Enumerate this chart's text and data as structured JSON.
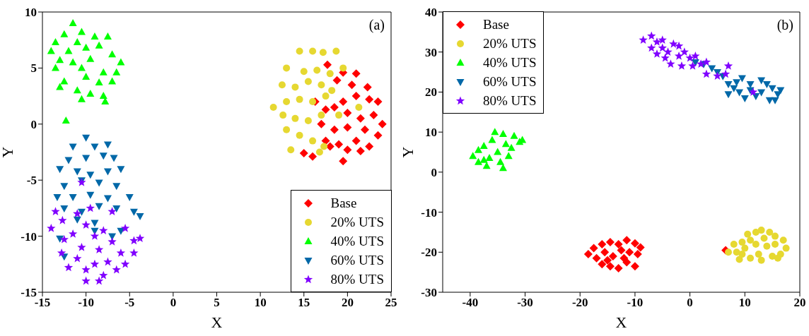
{
  "chart_data": [
    {
      "type": "scatter",
      "xlabel": "X",
      "ylabel": "Y",
      "annotations": [
        "(a)"
      ],
      "xlim": [
        -15,
        25
      ],
      "ylim": [
        -15,
        10
      ],
      "xticks": [
        -15,
        -10,
        -5,
        0,
        5,
        10,
        15,
        20,
        25
      ],
      "yticks": [
        -15,
        -10,
        -5,
        0,
        5,
        10
      ],
      "legend": "bottom right",
      "series": [
        {
          "name": "Base",
          "color": "#ff0000",
          "marker": "diamond",
          "x": [
            17.7,
            19.5,
            21,
            22.3,
            18.8,
            20.5,
            23.5,
            22.5,
            19.5,
            21,
            18.5,
            20,
            21.5,
            23,
            24,
            17,
            18.5,
            20,
            22,
            23.5,
            17.5,
            19,
            21,
            22.5,
            20,
            19.5,
            15,
            16,
            18,
            21.5,
            17.5,
            16.3
          ],
          "values": [
            5.3,
            4.6,
            4.5,
            3.3,
            3.9,
            3.5,
            2,
            2.2,
            2,
            2.5,
            1.5,
            1,
            0.5,
            0.8,
            0,
            0,
            -0.5,
            -0.3,
            -0.5,
            -1,
            -1.5,
            -1.8,
            -1.5,
            -2,
            -2.3,
            -3.3,
            -2.6,
            -2.9,
            -2,
            -2.4,
            1.3,
            2
          ]
        },
        {
          "name": "20% UTS",
          "color": "#e6d831",
          "marker": "circle",
          "x": [
            14.5,
            16,
            17.2,
            18.7,
            19.5,
            13,
            15,
            16.5,
            18,
            12.5,
            14,
            15.5,
            17,
            18.2,
            11.5,
            13,
            14.5,
            16,
            17.5,
            12.6,
            14,
            15.5,
            17,
            13,
            14.5,
            16,
            17.3,
            13.5,
            16.8,
            21.3,
            19
          ],
          "values": [
            6.5,
            6.5,
            6.4,
            6.5,
            5,
            5,
            4.7,
            4.8,
            4.5,
            3.5,
            3.3,
            3.8,
            3.5,
            3,
            1.5,
            2,
            2.2,
            2,
            2.5,
            0.8,
            0.5,
            0.3,
            0.8,
            -0.5,
            -1,
            -1.5,
            -2,
            -2.3,
            -2.5,
            1.5,
            0.8
          ]
        },
        {
          "name": "40% UTS",
          "color": "#00ff00",
          "marker": "triangle",
          "x": [
            -11.5,
            -12.5,
            -10.5,
            -9,
            -7.5,
            -13.5,
            -11,
            -8.5,
            -14,
            -12,
            -10,
            -7,
            -13,
            -11.5,
            -9.5,
            -6,
            -13.5,
            -10.5,
            -8,
            -6.5,
            -12.5,
            -10,
            -8.5,
            -7,
            -13,
            -11,
            -9.5,
            -8,
            -10.5,
            -7.8,
            -12.3
          ],
          "values": [
            9,
            8,
            8.2,
            7.8,
            7.8,
            7.3,
            7.3,
            7,
            6.5,
            6.5,
            6.8,
            6.2,
            5.7,
            5.5,
            5.8,
            5.5,
            5,
            5,
            4.6,
            4.6,
            3.8,
            4.2,
            3.7,
            3.8,
            3.3,
            3,
            2.7,
            2.5,
            2.2,
            2,
            0.3
          ]
        },
        {
          "name": "60% UTS",
          "color": "#0068a8",
          "marker": "triangle-down",
          "x": [
            -10,
            -11.5,
            -9,
            -7.5,
            -12,
            -10,
            -8,
            -6.8,
            -13,
            -11,
            -9.5,
            -7.5,
            -6,
            -12.5,
            -10.5,
            -8.5,
            -6.5,
            -13.3,
            -11.5,
            -9.5,
            -7.5,
            -5,
            -12.5,
            -10.5,
            -8.5,
            -6.5,
            -4.5,
            -11,
            -9,
            -3.8,
            -13,
            -9,
            -6,
            -12.5,
            -7
          ],
          "values": [
            -1.2,
            -2,
            -2,
            -1.8,
            -3.2,
            -3,
            -2.8,
            -3,
            -4,
            -4.2,
            -4.5,
            -4.2,
            -4,
            -5.5,
            -5,
            -5.2,
            -5.5,
            -6.5,
            -6.5,
            -6.3,
            -6.6,
            -6.5,
            -7.5,
            -7.8,
            -7.3,
            -7.5,
            -7.8,
            -8.5,
            -8.8,
            -8.2,
            -10.2,
            -9.5,
            -9.5,
            -11.8,
            -10
          ]
        },
        {
          "name": "80% UTS",
          "color": "#8000ff",
          "marker": "star",
          "x": [
            -10.5,
            -13.5,
            -11,
            -9.5,
            -7,
            -12.7,
            -10,
            -8,
            -5.5,
            -14,
            -11.5,
            -9,
            -7,
            -4.5,
            -3.8,
            -12.5,
            -10.5,
            -8.5,
            -6,
            -12.8,
            -11,
            -9,
            -7.5,
            -12,
            -10,
            -8,
            -6.5,
            -10,
            -8.5,
            -4.5,
            -5.5
          ],
          "values": [
            -5.2,
            -7.8,
            -8,
            -7.5,
            -7.8,
            -8.6,
            -9,
            -9.5,
            -9.3,
            -9.3,
            -9.8,
            -10,
            -10.5,
            -10.4,
            -10.2,
            -10.3,
            -11,
            -11.2,
            -11.5,
            -11.5,
            -12,
            -12.5,
            -12.3,
            -12.8,
            -13,
            -13.5,
            -13,
            -14,
            -14,
            -11.5,
            -12.5
          ]
        }
      ]
    },
    {
      "type": "scatter",
      "xlabel": "X",
      "ylabel": "Y",
      "annotations": [
        "(b)"
      ],
      "xlim": [
        -45,
        20
      ],
      "ylim": [
        -30,
        40
      ],
      "xticks": [
        -40,
        -30,
        -20,
        -10,
        0,
        10,
        20
      ],
      "yticks": [
        -30,
        -20,
        -10,
        0,
        10,
        20,
        30,
        40
      ],
      "legend": "top left",
      "series": [
        {
          "name": "Base",
          "color": "#ff0000",
          "marker": "diamond",
          "x": [
            -18.5,
            -17.5,
            -16,
            -14.5,
            -13,
            -11.5,
            -10,
            -9,
            -17,
            -15.5,
            -14,
            -12.5,
            -11,
            -9.5,
            -16,
            -14.5,
            -13,
            -11.5,
            -10,
            -12,
            -15,
            6.5
          ],
          "values": [
            -20.5,
            -19,
            -18,
            -17.5,
            -18,
            -17,
            -17.8,
            -18.8,
            -21.5,
            -20,
            -21,
            -19.5,
            -20,
            -20.5,
            -23,
            -23.5,
            -24,
            -22.5,
            -23.5,
            -21.5,
            -22,
            -19.5
          ]
        },
        {
          "name": "20% UTS",
          "color": "#e6d831",
          "marker": "circle",
          "x": [
            7,
            8,
            9.5,
            10.5,
            12,
            13,
            14.5,
            15.5,
            17,
            17.5,
            16.5,
            15,
            13,
            11,
            9,
            8.5,
            10,
            12,
            14,
            11,
            13.5,
            15.5,
            12.5,
            9.5,
            16
          ],
          "values": [
            -20,
            -18,
            -17.5,
            -15.5,
            -15,
            -14.5,
            -15,
            -16,
            -17,
            -19,
            -20.5,
            -21,
            -22,
            -21.5,
            -21.8,
            -20,
            -19,
            -18,
            -18.5,
            -17,
            -16.5,
            -18,
            -20.5,
            -20.5,
            -21.5
          ]
        },
        {
          "name": "40% UTS",
          "color": "#00ff00",
          "marker": "triangle",
          "x": [
            -39.5,
            -38.5,
            -38.5,
            -37.5,
            -37,
            -36,
            -35.5,
            -35,
            -34.5,
            -34,
            -33.5,
            -33,
            -32.5,
            -32,
            -31,
            -30.5,
            -36.5,
            -34,
            -37.5
          ],
          "values": [
            4,
            2.5,
            5.5,
            6.5,
            1.5,
            8,
            10,
            5,
            2.5,
            9.5,
            7,
            4,
            6,
            9,
            7.5,
            8,
            3.5,
            1,
            3
          ]
        },
        {
          "name": "60% UTS",
          "color": "#0068a8",
          "marker": "triangle-down",
          "x": [
            1,
            2.5,
            4,
            5,
            6,
            7,
            8,
            9,
            9.5,
            10,
            11,
            12,
            13,
            14,
            15,
            16,
            16.5,
            14.5,
            13,
            11,
            8.5,
            7,
            15.5
          ],
          "values": [
            27.5,
            27,
            26,
            25,
            24,
            22,
            21,
            20,
            23.5,
            18.5,
            20.5,
            19,
            23,
            22,
            21,
            19.5,
            20.5,
            18,
            20,
            22,
            22.5,
            19.5,
            18
          ]
        },
        {
          "name": "80% UTS",
          "color": "#8000ff",
          "marker": "star",
          "x": [
            -8.5,
            -7,
            -6,
            -5,
            -4,
            -3,
            -2,
            -1,
            0,
            1,
            2,
            3,
            -7,
            -6,
            -4.5,
            -3.5,
            -1.5,
            0.5,
            3,
            5,
            6.5,
            7,
            11.5,
            -5,
            -2
          ],
          "values": [
            33,
            34,
            32.5,
            31,
            30,
            32,
            29,
            30,
            28.5,
            29,
            27,
            27.5,
            31,
            29.5,
            28.5,
            27,
            26.5,
            26.5,
            24.5,
            24,
            24.5,
            26.5,
            20,
            33,
            31.5
          ]
        }
      ]
    }
  ]
}
